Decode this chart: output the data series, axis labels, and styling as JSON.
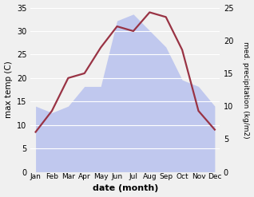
{
  "months": [
    "Jan",
    "Feb",
    "Mar",
    "Apr",
    "May",
    "Jun",
    "Jul",
    "Aug",
    "Sep",
    "Oct",
    "Nov",
    "Dec"
  ],
  "temp_C": [
    8.5,
    13.0,
    20.0,
    21.0,
    26.5,
    31.0,
    30.0,
    34.0,
    33.0,
    26.0,
    13.0,
    9.0
  ],
  "precip_kg": [
    10.0,
    9.0,
    10.0,
    13.0,
    13.0,
    23.0,
    24.0,
    21.5,
    19.0,
    14.0,
    13.0,
    10.0
  ],
  "temp_color": "#993344",
  "precip_fill_color": "#c0c8ee",
  "xlabel": "date (month)",
  "ylabel_left": "max temp (C)",
  "ylabel_right": "med. precipitation (kg/m2)",
  "ylim_left": [
    0,
    35
  ],
  "ylim_right": [
    0,
    25
  ],
  "yticks_left": [
    0,
    5,
    10,
    15,
    20,
    25,
    30,
    35
  ],
  "yticks_right": [
    0,
    5,
    10,
    15,
    20,
    25
  ],
  "bg_color": "#f0f0f0",
  "line_width": 1.6,
  "label_fontsize": 7.5,
  "tick_fontsize": 7,
  "xlabel_fontsize": 8
}
